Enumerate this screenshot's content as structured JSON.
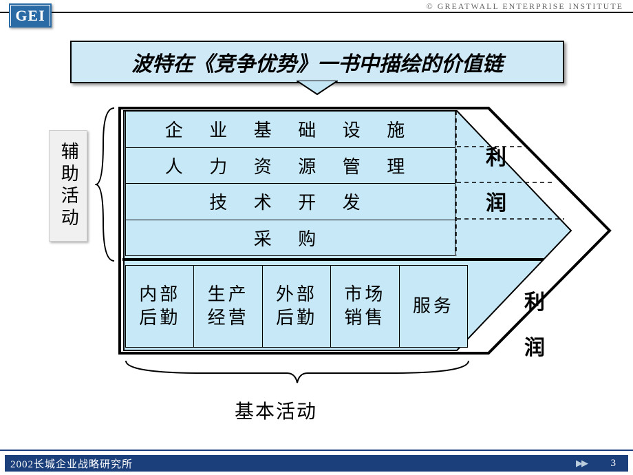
{
  "header": {
    "copyright_symbol": "©",
    "org_name": "GREATWALL  ENTERPRISE  INSTITUTE",
    "logo_text": "GEI",
    "logo_bg": "#2a6aa5"
  },
  "title": {
    "text": "波特在《竞争优势》一书中描绘的价值链",
    "bg": "#d0e9f7",
    "fontsize": 30,
    "arrow_fill": "#c4e5f4"
  },
  "side_label": {
    "text": "辅助活动",
    "bg": "#f0f0f0"
  },
  "bottom_label": {
    "text": "基本活动"
  },
  "value_chain": {
    "type": "flowchart",
    "fill": "#c6e8f7",
    "border": "#000000",
    "border_width": 4,
    "dash": "6,5",
    "fontsize": 26,
    "support_activities": [
      "企 业   基 础   设 施",
      "人 力   资 源   管 理",
      "技   术   开   发",
      "采 购"
    ],
    "primary_activities": [
      "内部\n后勤",
      "生产\n经营",
      "外部\n后勤",
      "市场\n销售",
      "服务"
    ],
    "profit_label_1": "利\n润",
    "profit_label_2": "利\n润"
  },
  "footer": {
    "text": "2002长城企业战略研究所",
    "bar_color": "#1b3f7a",
    "page": "3",
    "nav_glyph": "▶▶"
  }
}
